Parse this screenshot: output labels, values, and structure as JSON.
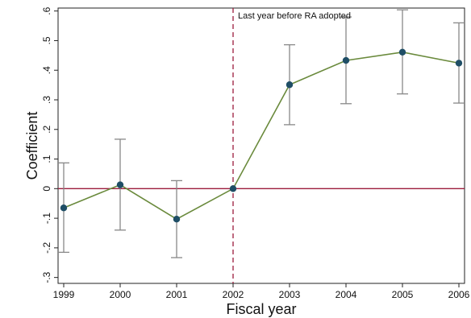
{
  "chart_data": {
    "type": "line",
    "xlabel": "Fiscal year",
    "ylabel": "Coefficient",
    "x": [
      1999,
      2000,
      2001,
      2002,
      2003,
      2004,
      2005,
      2006
    ],
    "x_ticks": [
      "1999",
      "2000",
      "2001",
      "2002",
      "2003",
      "2004",
      "2005",
      "2006"
    ],
    "y_ticks": [
      {
        "value": -0.3,
        "label": "-.3"
      },
      {
        "value": -0.2,
        "label": "-.2"
      },
      {
        "value": -0.1,
        "label": "-.1"
      },
      {
        "value": 0,
        "label": "0"
      },
      {
        "value": 0.1,
        "label": ".1"
      },
      {
        "value": 0.2,
        "label": ".2"
      },
      {
        "value": 0.3,
        "label": ".3"
      },
      {
        "value": 0.4,
        "label": ".4"
      },
      {
        "value": 0.5,
        "label": ".5"
      },
      {
        "value": 0.6,
        "label": ".6"
      }
    ],
    "ylim": [
      -0.32,
      0.61
    ],
    "xlim": [
      1998.9,
      2006.1
    ],
    "series": [
      {
        "values": [
          -0.065,
          0.013,
          -0.103,
          0.0,
          0.351,
          0.433,
          0.461,
          0.424
        ],
        "ci_lower": [
          -0.215,
          -0.14,
          -0.233,
          0.0,
          0.216,
          0.287,
          0.32,
          0.289
        ],
        "ci_upper": [
          0.087,
          0.167,
          0.027,
          0.0,
          0.486,
          0.58,
          0.604,
          0.56
        ],
        "line_color": "#6a8a3c",
        "marker_color": "#1f4e66",
        "errorbar_color": "#888888"
      }
    ],
    "reference_lines": {
      "horizontal": {
        "value": 0,
        "color": "#9b1b3c"
      },
      "vertical": {
        "x": 2002,
        "color": "#9b1b3c",
        "style": "dashed",
        "label": "Last year before RA adopted"
      }
    },
    "grid": false
  }
}
